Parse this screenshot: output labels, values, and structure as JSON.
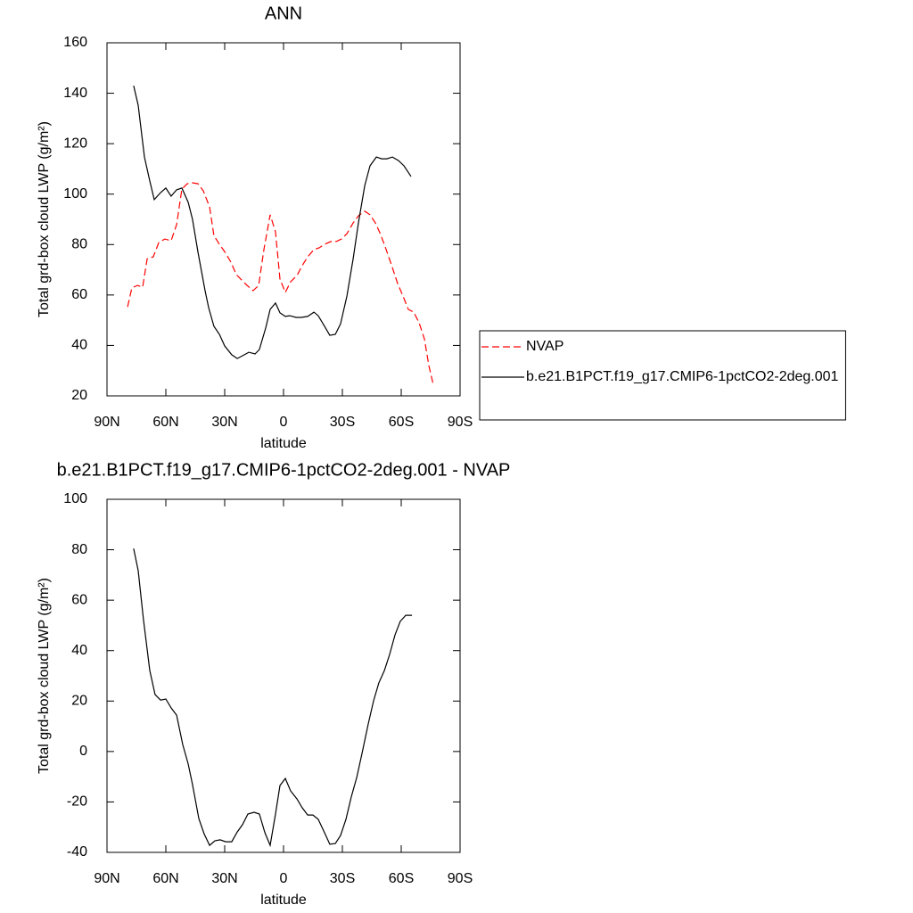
{
  "chart_data": [
    {
      "type": "line",
      "title": "ANN",
      "xlabel": "latitude",
      "ylabel": "Total grd-box cloud LWP (g/m²)",
      "xlim": [
        90,
        -90
      ],
      "xticks": [
        {
          "value": 90,
          "label": "90N"
        },
        {
          "value": 60,
          "label": "60N"
        },
        {
          "value": 30,
          "label": "30N"
        },
        0,
        {
          "value": -30,
          "label": "30S"
        },
        {
          "value": -60,
          "label": "60S"
        },
        {
          "value": -90,
          "label": "90S"
        }
      ],
      "ylim": [
        20,
        160
      ],
      "yticks": [
        20,
        40,
        60,
        80,
        100,
        120,
        140,
        160
      ],
      "legend": "right",
      "series": [
        {
          "name": "NVAP",
          "color": "#ff0000",
          "line_style": "dashed",
          "x": [
            79.5,
            77.3,
            74.5,
            71.8,
            69.5,
            66.4,
            63.6,
            60.5,
            57.3,
            54.5,
            51.8,
            49.1,
            46.4,
            43.6,
            40.9,
            37.7,
            35.5,
            32.7,
            29.5,
            26.8,
            24.1,
            21.4,
            18.6,
            15.5,
            12.7,
            10,
            6.8,
            4.1,
            1.8,
            -0.9,
            -3.6,
            -6.8,
            -9.5,
            -12.3,
            -15.5,
            -18.2,
            -20.9,
            -24.1,
            -26.8,
            -29.5,
            -32.3,
            -35.5,
            -38.2,
            -41.4,
            -44.1,
            -46.8,
            -49.5,
            -52.3,
            -55,
            -58.2,
            -60.9,
            -63.6,
            -66.4,
            -69.1,
            -71.8,
            -74.1,
            -76.4
          ],
          "values": [
            55.3,
            62.8,
            63.8,
            63.1,
            74.4,
            75.1,
            80.8,
            82.2,
            81.5,
            87.9,
            102,
            104.1,
            104.5,
            104.1,
            101.3,
            94.9,
            83.6,
            80.1,
            76.6,
            73,
            68.1,
            66,
            63.8,
            61.7,
            63.8,
            78,
            91.8,
            85,
            66.3,
            61,
            65.2,
            67.7,
            71.6,
            75.1,
            78,
            78.7,
            80.1,
            81.2,
            81.2,
            82.2,
            84.3,
            88.6,
            91.4,
            93.2,
            91.8,
            88.6,
            84,
            78,
            72,
            64.5,
            59.6,
            54.3,
            53.2,
            49,
            42.6,
            32,
            24.2
          ]
        },
        {
          "name": "b.e21.B1PCT.f19_g17.CMIP6-1pctCO2-2deg.001",
          "color": "#000000",
          "line_style": "solid",
          "x": [
            76.4,
            74.1,
            70.9,
            68.2,
            65.9,
            62.7,
            60,
            57.3,
            54.5,
            51.8,
            48.6,
            46.4,
            43.6,
            40,
            38.2,
            35.5,
            32.7,
            30,
            26.4,
            23.6,
            20.9,
            17.7,
            14.5,
            12.3,
            9.1,
            6.8,
            4.1,
            1.8,
            -0.9,
            -3.2,
            -6.4,
            -9.1,
            -12.3,
            -15.5,
            -17.7,
            -20.9,
            -23.6,
            -26.4,
            -29.1,
            -32.3,
            -35.5,
            -38.2,
            -41.4,
            -44.1,
            -47.3,
            -50,
            -52.7,
            -55.5,
            -58.6,
            -61.4,
            -65
          ],
          "values": [
            143,
            135.2,
            114.7,
            105.2,
            97.8,
            100.6,
            102.4,
            99.2,
            101.7,
            102.4,
            96.7,
            90,
            76.9,
            61.7,
            55,
            47.6,
            44.4,
            39.8,
            36.3,
            34.8,
            35.9,
            37.3,
            36.6,
            38.4,
            46.9,
            54.3,
            56.8,
            52.9,
            51.5,
            51.8,
            51.1,
            51.1,
            51.5,
            53.2,
            51.8,
            47.6,
            44,
            44.4,
            48.6,
            59.6,
            74.4,
            88.6,
            103.4,
            111.2,
            114.7,
            114,
            114,
            114.7,
            113.3,
            111.2,
            107
          ]
        }
      ]
    },
    {
      "type": "line",
      "title": "b.e21.B1PCT.f19_g17.CMIP6-1pctCO2-2deg.001 - NVAP",
      "xlabel": "latitude",
      "ylabel": "Total grd-box cloud LWP (g/m²)",
      "xlim": [
        90,
        -90
      ],
      "xticks": [
        {
          "value": 90,
          "label": "90N"
        },
        {
          "value": 60,
          "label": "60N"
        },
        {
          "value": 30,
          "label": "30N"
        },
        0,
        {
          "value": -30,
          "label": "30S"
        },
        {
          "value": -60,
          "label": "60S"
        },
        {
          "value": -90,
          "label": "90S"
        }
      ],
      "ylim": [
        -40,
        100
      ],
      "yticks": [
        -40,
        -20,
        0,
        20,
        40,
        60,
        80,
        100
      ],
      "series": [
        {
          "color": "#000000",
          "line_style": "solid",
          "x": [
            76.4,
            74.1,
            71.4,
            68.2,
            65.5,
            62.7,
            60,
            57.3,
            54.5,
            51.4,
            48.6,
            46.4,
            43.2,
            40.5,
            37.7,
            35,
            32.3,
            29.5,
            26.4,
            23.6,
            20.9,
            18.2,
            15,
            12.3,
            9.5,
            6.8,
            4.1,
            1.8,
            -0.9,
            -3.6,
            -6.8,
            -9.5,
            -12.3,
            -15,
            -17.7,
            -20.5,
            -23.6,
            -26.4,
            -29.1,
            -31.8,
            -34.5,
            -37.3,
            -40,
            -43.2,
            -45.9,
            -48.6,
            -51.4,
            -54.1,
            -56.8,
            -59.5,
            -62.3,
            -65.5
          ],
          "values": [
            80.5,
            71.7,
            52.3,
            32.1,
            22.6,
            20.4,
            20.8,
            17.3,
            14.4,
            2.8,
            -5,
            -13.1,
            -26.6,
            -32.6,
            -37.2,
            -35.4,
            -35,
            -35.8,
            -35.8,
            -31.9,
            -29,
            -24.8,
            -24.1,
            -24.8,
            -32.2,
            -37.2,
            -24.8,
            -13.5,
            -10.7,
            -15.6,
            -18.8,
            -22.3,
            -25.2,
            -25.2,
            -26.9,
            -31.5,
            -36.8,
            -36.5,
            -33.3,
            -26.9,
            -18.1,
            -10.3,
            -0.8,
            10.9,
            20.1,
            27.2,
            32.1,
            38.5,
            46.2,
            51.6,
            54,
            54
          ]
        }
      ]
    }
  ]
}
